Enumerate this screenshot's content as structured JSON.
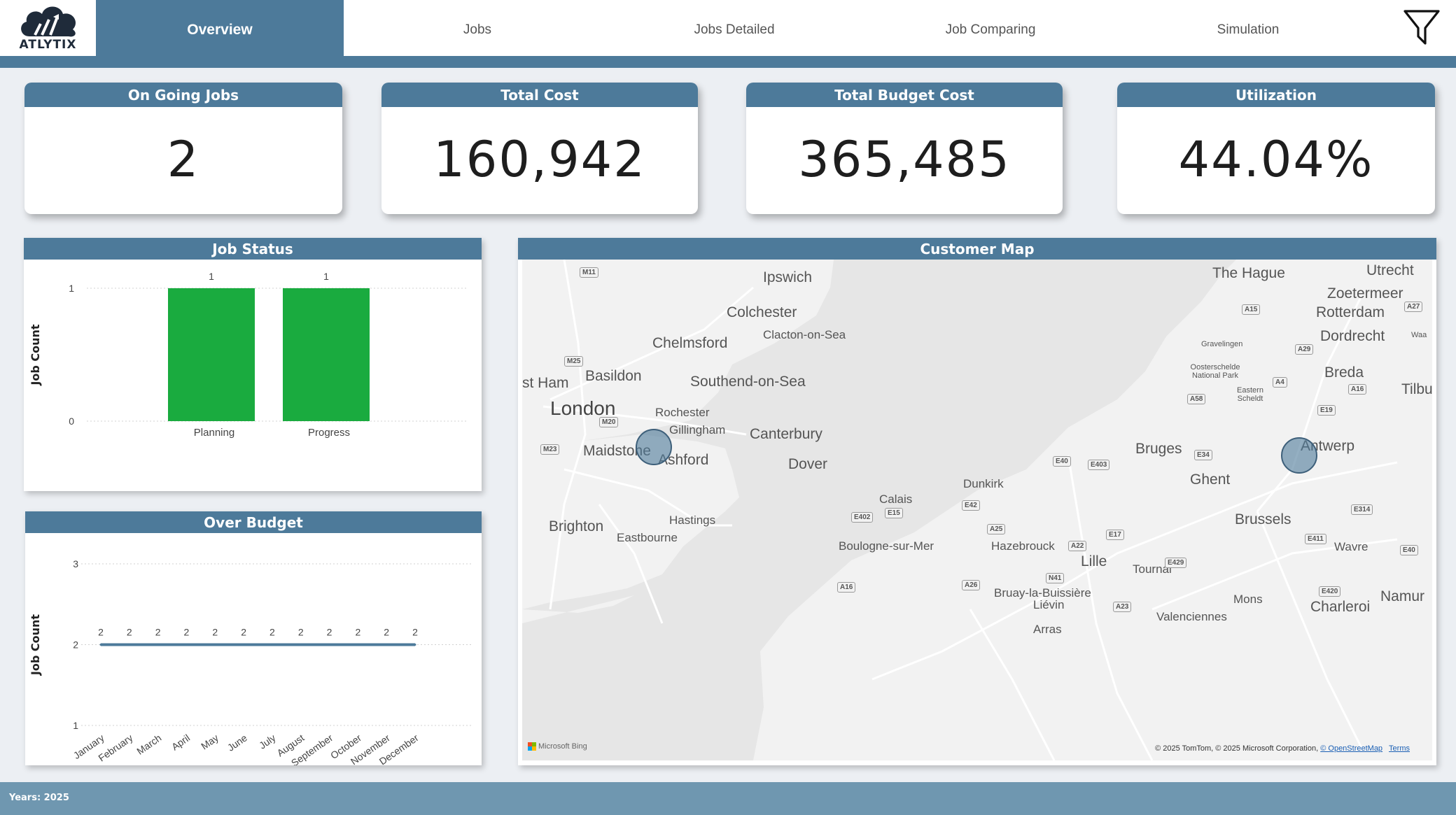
{
  "app": {
    "logo_text": "ATLYTIX"
  },
  "nav": {
    "tabs": [
      {
        "label": "Overview",
        "active": true
      },
      {
        "label": "Jobs",
        "active": false
      },
      {
        "label": "Jobs Detailed",
        "active": false
      },
      {
        "label": "Job Comparing",
        "active": false
      },
      {
        "label": "Simulation",
        "active": false
      }
    ],
    "filter_icon": "funnel-icon"
  },
  "kpis": [
    {
      "title": "On Going Jobs",
      "value": "2"
    },
    {
      "title": "Total Cost",
      "value": "160,942"
    },
    {
      "title": "Total Budget Cost",
      "value": "365,485"
    },
    {
      "title": "Utilization",
      "value": "44.04%"
    }
  ],
  "job_status": {
    "title": "Job Status"
  },
  "over_budget": {
    "title": "Over Budget"
  },
  "chart_data": [
    {
      "type": "bar",
      "title": "Job Status",
      "ylabel": "Job Count",
      "xlabel": "",
      "categories": [
        "Planning",
        "Progress"
      ],
      "values": [
        1,
        1
      ],
      "data_labels": [
        "1",
        "1"
      ],
      "yticks": [
        "0",
        "1"
      ],
      "ylim": [
        0,
        1
      ],
      "color": "#1aab3f",
      "grid": true
    },
    {
      "type": "line",
      "title": "Over Budget",
      "ylabel": "Job Count",
      "xlabel": "",
      "categories": [
        "January",
        "February",
        "March",
        "April",
        "May",
        "June",
        "July",
        "August",
        "September",
        "October",
        "November",
        "December"
      ],
      "values": [
        2,
        2,
        2,
        2,
        2,
        2,
        2,
        2,
        2,
        2,
        2,
        2
      ],
      "data_labels": [
        "2",
        "2",
        "2",
        "2",
        "2",
        "2",
        "2",
        "2",
        "2",
        "2",
        "2",
        "2"
      ],
      "yticks": [
        "1",
        "2",
        "3"
      ],
      "ylim": [
        1,
        3
      ],
      "color": "#4d7a9a",
      "grid": true
    }
  ],
  "customer_map": {
    "title": "Customer Map",
    "places": [
      "Ipswich",
      "Colchester",
      "Clacton-on-Sea",
      "Chelmsford",
      "Basildon",
      "Southend-on-Sea",
      "st Ham",
      "London",
      "Rochester",
      "Gillingham",
      "Canterbury",
      "Maidstone",
      "Ashford",
      "Dover",
      "Brighton",
      "Hastings",
      "Eastbourne",
      "Calais",
      "Boulogne-sur-Mer",
      "Dunkirk",
      "Hazebrouck",
      "Lille",
      "Tournai",
      "Bruay-la-Buissière",
      "Liévin",
      "Arras",
      "Valenciennes",
      "Mons",
      "Charleroi",
      "Namur",
      "Wavre",
      "Brussels",
      "Ghent",
      "Bruges",
      "Antwerp",
      "The Hague",
      "Utrecht",
      "Zoetermeer",
      "Rotterdam",
      "Dordrecht",
      "Waa",
      "Gravelingen",
      "Oosterschelde National Park",
      "Eastern Scheldt",
      "Breda",
      "Tilburg"
    ],
    "roads": [
      "M11",
      "M25",
      "M20",
      "M23",
      "A15",
      "A27",
      "A29",
      "A4",
      "A16",
      "A58",
      "E19",
      "E34",
      "E40",
      "E403",
      "E42",
      "E402",
      "E15",
      "A25",
      "A22",
      "E17",
      "E314",
      "E411",
      "E429",
      "E420",
      "A23",
      "N41",
      "A26",
      "A16",
      "E40"
    ],
    "bing_label": "Microsoft Bing",
    "attribution": "© 2025 TomTom, © 2025 Microsoft Corporation,",
    "osm_link": "© OpenStreetMap",
    "terms_link": "Terms"
  },
  "footer": {
    "filter_text": "Years: 2025"
  }
}
